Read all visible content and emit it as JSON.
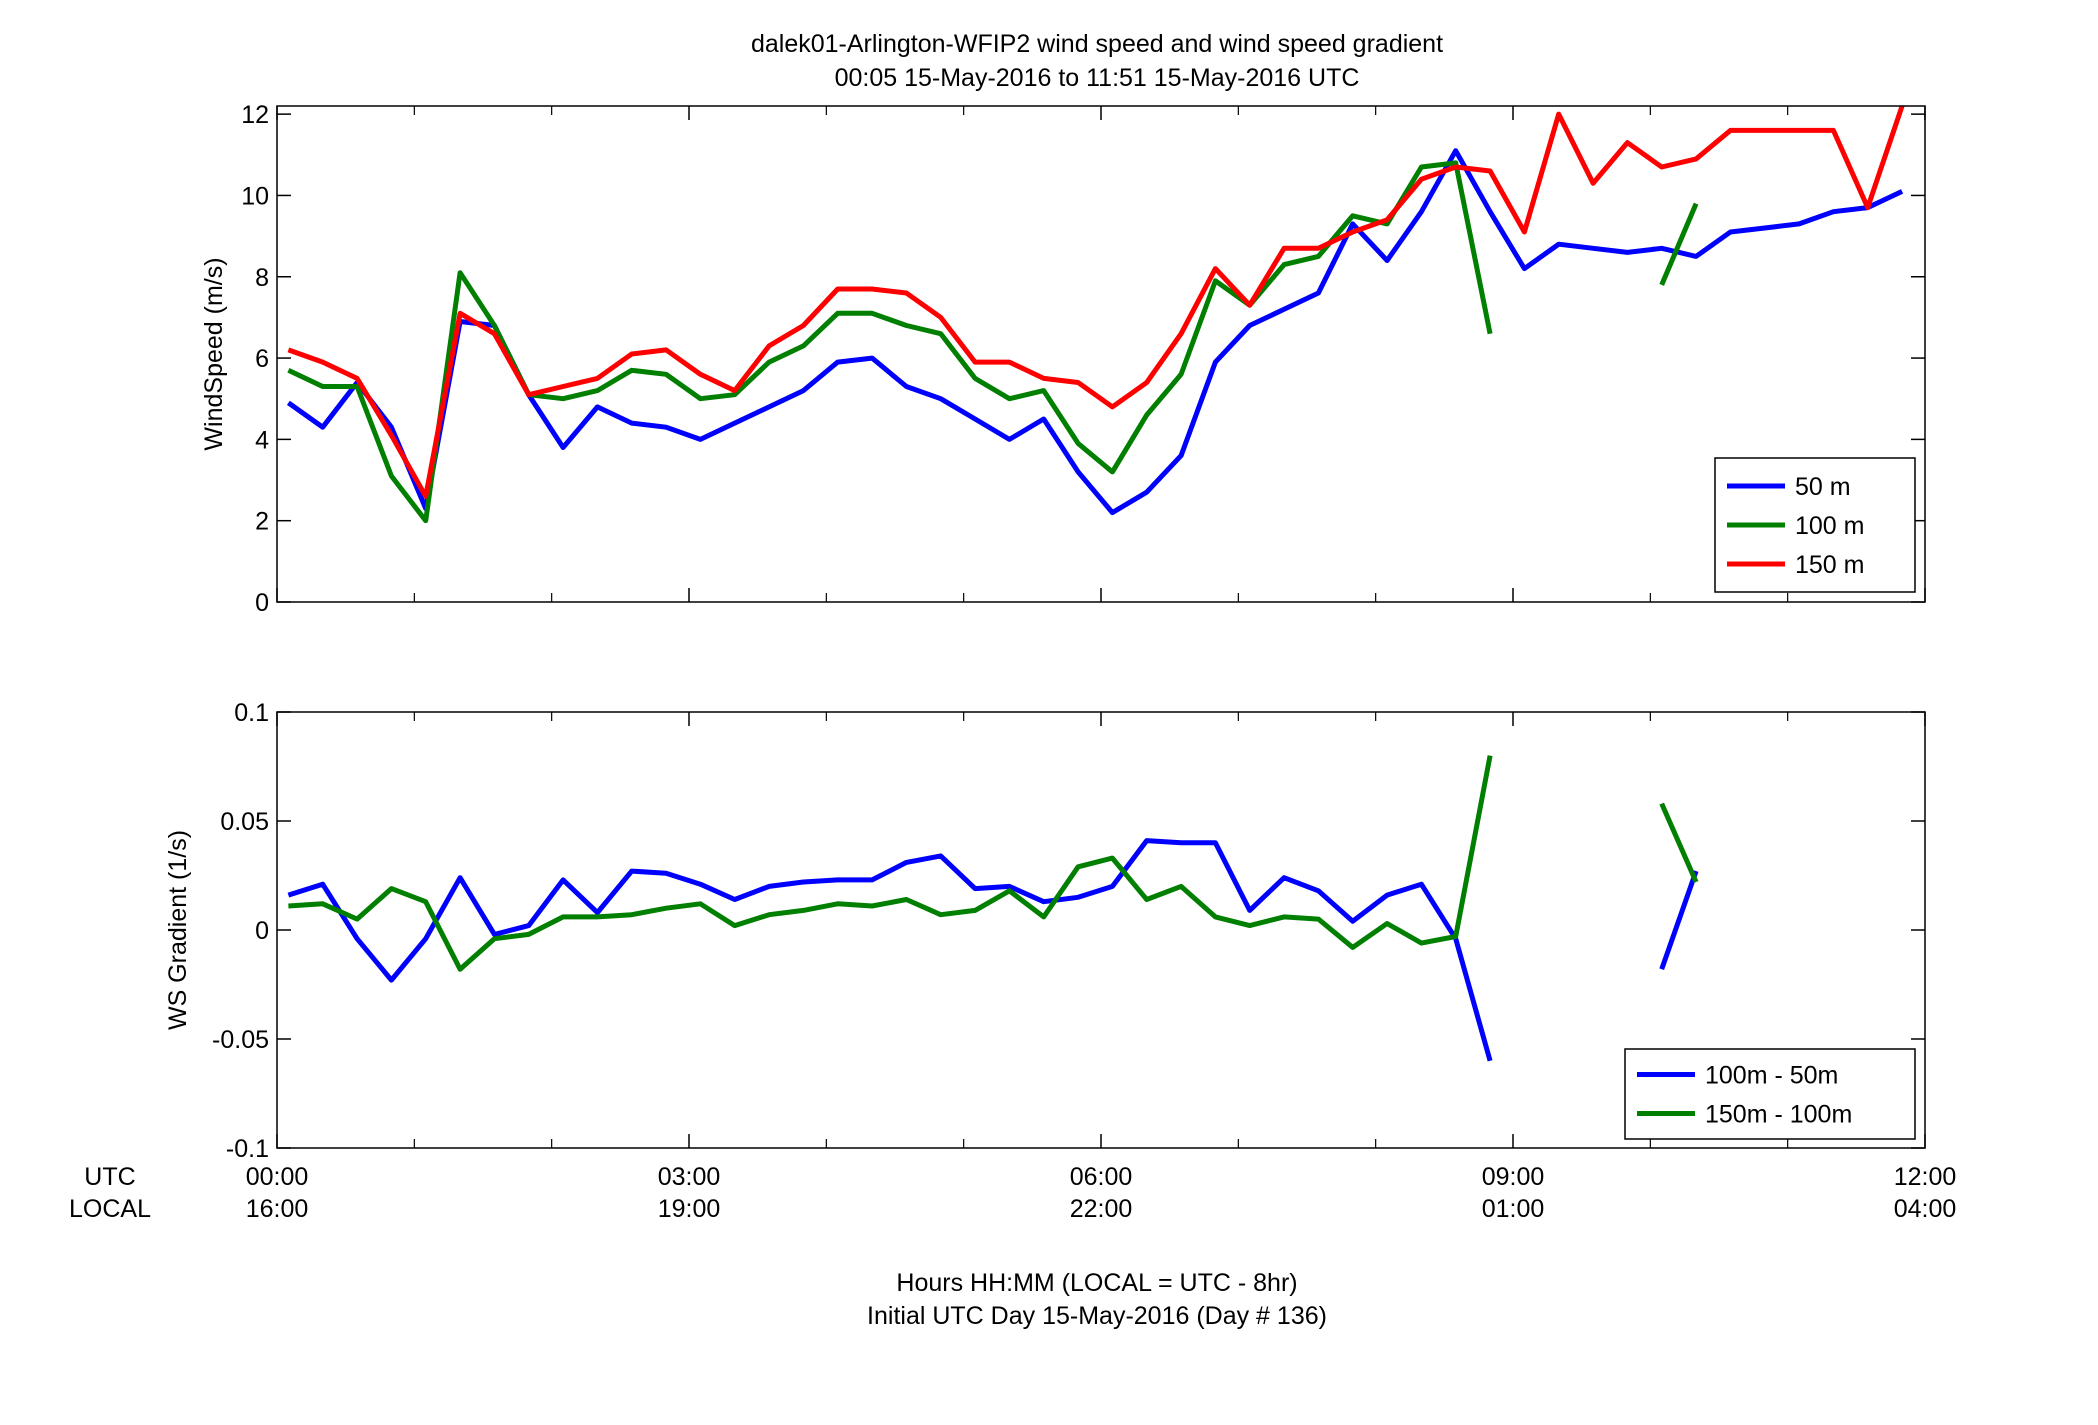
{
  "title": {
    "line1": "dalek01-Arlington-WFIP2  wind speed and wind speed gradient",
    "line2": "00:05 15-May-2016 to 11:51 15-May-2016  UTC"
  },
  "time_axis": {
    "row_label_utc": "UTC",
    "row_label_local": "LOCAL",
    "ticks_utc": [
      "00:00",
      "03:00",
      "06:00",
      "09:00",
      "12:00"
    ],
    "ticks_local": [
      "16:00",
      "19:00",
      "22:00",
      "01:00",
      "04:00"
    ],
    "xlabel_line1": "Hours HH:MM  (LOCAL = UTC - 8hr)",
    "xlabel_line2": "Initial UTC Day 15-May-2016 (Day # 136)"
  },
  "colors": {
    "blue": "#0000ff",
    "green": "#007f00",
    "red": "#ff0000"
  },
  "chart_data": [
    {
      "type": "line",
      "ylabel": "WindSpeed (m/s)",
      "xlim": [
        0,
        12
      ],
      "ylim": [
        0,
        12.2
      ],
      "yticks": [
        "0",
        "2",
        "4",
        "6",
        "8",
        "10",
        "12"
      ],
      "ytick_values": [
        0,
        2,
        4,
        6,
        8,
        10,
        12
      ],
      "legend_position": "bottom-right",
      "series": [
        {
          "name": "50 m",
          "color": "#0000ff",
          "x": [
            0.083,
            0.333,
            0.583,
            0.833,
            1.083,
            1.333,
            1.583,
            1.833,
            2.083,
            2.333,
            2.583,
            2.833,
            3.083,
            3.333,
            3.583,
            3.833,
            4.083,
            4.333,
            4.583,
            4.833,
            5.083,
            5.333,
            5.583,
            5.833,
            6.083,
            6.333,
            6.583,
            6.833,
            7.083,
            7.333,
            7.583,
            7.833,
            8.083,
            8.333,
            8.583,
            8.833,
            9.083,
            9.333,
            9.583,
            9.833,
            10.083,
            10.333,
            10.583,
            10.833,
            11.083,
            11.333,
            11.583,
            11.833
          ],
          "y": [
            4.9,
            4.3,
            5.4,
            4.3,
            2.3,
            6.9,
            6.8,
            5.1,
            3.8,
            4.8,
            4.4,
            4.3,
            4.0,
            4.4,
            4.8,
            5.2,
            5.9,
            6.0,
            5.3,
            5.0,
            4.5,
            4.0,
            4.5,
            3.2,
            2.2,
            2.7,
            3.6,
            5.9,
            6.8,
            7.2,
            7.6,
            9.3,
            8.4,
            9.6,
            11.1,
            9.6,
            8.2,
            8.8,
            8.7,
            8.6,
            8.7,
            8.5,
            9.1,
            9.2,
            9.3,
            9.6,
            9.7,
            10.1
          ]
        },
        {
          "name": "100 m",
          "color": "#007f00",
          "x": [
            0.083,
            0.333,
            0.583,
            0.833,
            1.083,
            1.333,
            1.583,
            1.833,
            2.083,
            2.333,
            2.583,
            2.833,
            3.083,
            3.333,
            3.583,
            3.833,
            4.083,
            4.333,
            4.583,
            4.833,
            5.083,
            5.333,
            5.583,
            5.833,
            6.083,
            6.333,
            6.583,
            6.833,
            7.083,
            7.333,
            7.583,
            7.833,
            8.083,
            8.333,
            8.583,
            8.833,
            9.083,
            9.333,
            9.583,
            9.833,
            10.083,
            10.333,
            10.583,
            10.833,
            11.083,
            11.333,
            11.583,
            11.833
          ],
          "y": [
            5.7,
            5.3,
            5.3,
            3.1,
            2.0,
            8.1,
            6.8,
            5.1,
            5.0,
            5.2,
            5.7,
            5.6,
            5.0,
            5.1,
            5.9,
            6.3,
            7.1,
            7.1,
            6.8,
            6.6,
            5.5,
            5.0,
            5.2,
            3.9,
            3.2,
            4.6,
            5.6,
            7.9,
            7.3,
            8.3,
            8.5,
            9.5,
            9.3,
            10.7,
            10.8,
            6.6,
            null,
            null,
            null,
            null,
            7.8,
            9.8,
            null,
            null,
            null,
            null,
            null,
            null
          ]
        },
        {
          "name": "150 m",
          "color": "#ff0000",
          "x": [
            0.083,
            0.333,
            0.583,
            0.833,
            1.083,
            1.333,
            1.583,
            1.833,
            2.083,
            2.333,
            2.583,
            2.833,
            3.083,
            3.333,
            3.583,
            3.833,
            4.083,
            4.333,
            4.583,
            4.833,
            5.083,
            5.333,
            5.583,
            5.833,
            6.083,
            6.333,
            6.583,
            6.833,
            7.083,
            7.333,
            7.583,
            7.833,
            8.083,
            8.333,
            8.583,
            8.833,
            9.083,
            9.333,
            9.583,
            9.833,
            10.083,
            10.333,
            10.583,
            10.833,
            11.083,
            11.333,
            11.583,
            11.833
          ],
          "y": [
            6.2,
            5.9,
            5.5,
            4.1,
            2.6,
            7.1,
            6.6,
            5.1,
            5.3,
            5.5,
            6.1,
            6.2,
            5.6,
            5.2,
            6.3,
            6.8,
            7.7,
            7.7,
            7.6,
            7.0,
            5.9,
            5.9,
            5.5,
            5.4,
            4.8,
            5.4,
            6.6,
            8.2,
            7.3,
            8.7,
            8.7,
            9.1,
            9.4,
            10.4,
            10.7,
            10.6,
            9.1,
            12.0,
            10.3,
            11.3,
            10.7,
            10.9,
            11.6,
            11.6,
            11.6,
            11.6,
            9.7,
            12.2
          ]
        }
      ]
    },
    {
      "type": "line",
      "ylabel": "WS Gradient (1/s)",
      "xlim": [
        0,
        12
      ],
      "ylim": [
        -0.1,
        0.1
      ],
      "yticks": [
        "-0.1",
        "-0.05",
        "0",
        "0.05",
        "0.1"
      ],
      "ytick_values": [
        -0.1,
        -0.05,
        0,
        0.05,
        0.1
      ],
      "legend_position": "bottom-right",
      "series": [
        {
          "name": "100m - 50m",
          "color": "#0000ff",
          "x": [
            0.083,
            0.333,
            0.583,
            0.833,
            1.083,
            1.333,
            1.583,
            1.833,
            2.083,
            2.333,
            2.583,
            2.833,
            3.083,
            3.333,
            3.583,
            3.833,
            4.083,
            4.333,
            4.583,
            4.833,
            5.083,
            5.333,
            5.583,
            5.833,
            6.083,
            6.333,
            6.583,
            6.833,
            7.083,
            7.333,
            7.583,
            7.833,
            8.083,
            8.333,
            8.583,
            8.833,
            9.083,
            9.333,
            9.583,
            9.833,
            10.083,
            10.333
          ],
          "y": [
            0.016,
            0.021,
            -0.004,
            -0.023,
            -0.004,
            0.024,
            -0.002,
            0.002,
            0.023,
            0.008,
            0.027,
            0.026,
            0.021,
            0.014,
            0.02,
            0.022,
            0.023,
            0.023,
            0.031,
            0.034,
            0.019,
            0.02,
            0.013,
            0.015,
            0.02,
            0.041,
            0.04,
            0.04,
            0.009,
            0.024,
            0.018,
            0.004,
            0.016,
            0.021,
            -0.004,
            -0.06,
            null,
            null,
            null,
            null,
            -0.018,
            0.027
          ]
        },
        {
          "name": "150m - 100m",
          "color": "#007f00",
          "x": [
            0.083,
            0.333,
            0.583,
            0.833,
            1.083,
            1.333,
            1.583,
            1.833,
            2.083,
            2.333,
            2.583,
            2.833,
            3.083,
            3.333,
            3.583,
            3.833,
            4.083,
            4.333,
            4.583,
            4.833,
            5.083,
            5.333,
            5.583,
            5.833,
            6.083,
            6.333,
            6.583,
            6.833,
            7.083,
            7.333,
            7.583,
            7.833,
            8.083,
            8.333,
            8.583,
            8.833,
            9.083,
            9.333,
            9.583,
            9.833,
            10.083,
            10.333
          ],
          "y": [
            0.011,
            0.012,
            0.005,
            0.019,
            0.013,
            -0.018,
            -0.004,
            -0.002,
            0.006,
            0.006,
            0.007,
            0.01,
            0.012,
            0.002,
            0.007,
            0.009,
            0.012,
            0.011,
            0.014,
            0.007,
            0.009,
            0.018,
            0.006,
            0.029,
            0.033,
            0.014,
            0.02,
            0.006,
            0.002,
            0.006,
            0.005,
            -0.008,
            0.003,
            -0.006,
            -0.003,
            0.08,
            null,
            null,
            null,
            null,
            0.058,
            0.022
          ]
        }
      ]
    }
  ]
}
